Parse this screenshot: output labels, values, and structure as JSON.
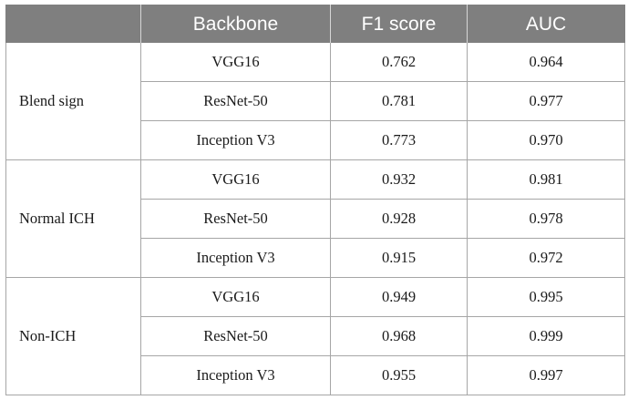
{
  "table": {
    "headers": [
      "",
      "Backbone",
      "F1 score",
      "AUC"
    ],
    "groups": [
      {
        "label": "Blend sign",
        "rows": [
          {
            "backbone": "VGG16",
            "f1": "0.762",
            "auc": "0.964"
          },
          {
            "backbone": "ResNet-50",
            "f1": "0.781",
            "auc": "0.977"
          },
          {
            "backbone": "Inception V3",
            "f1": "0.773",
            "auc": "0.970"
          }
        ]
      },
      {
        "label": "Normal ICH",
        "rows": [
          {
            "backbone": "VGG16",
            "f1": "0.932",
            "auc": "0.981"
          },
          {
            "backbone": "ResNet-50",
            "f1": "0.928",
            "auc": "0.978"
          },
          {
            "backbone": "Inception V3",
            "f1": "0.915",
            "auc": "0.972"
          }
        ]
      },
      {
        "label": "Non-ICH",
        "rows": [
          {
            "backbone": "VGG16",
            "f1": "0.949",
            "auc": "0.995"
          },
          {
            "backbone": "ResNet-50",
            "f1": "0.968",
            "auc": "0.999"
          },
          {
            "backbone": "Inception V3",
            "f1": "0.955",
            "auc": "0.997"
          }
        ]
      }
    ]
  }
}
